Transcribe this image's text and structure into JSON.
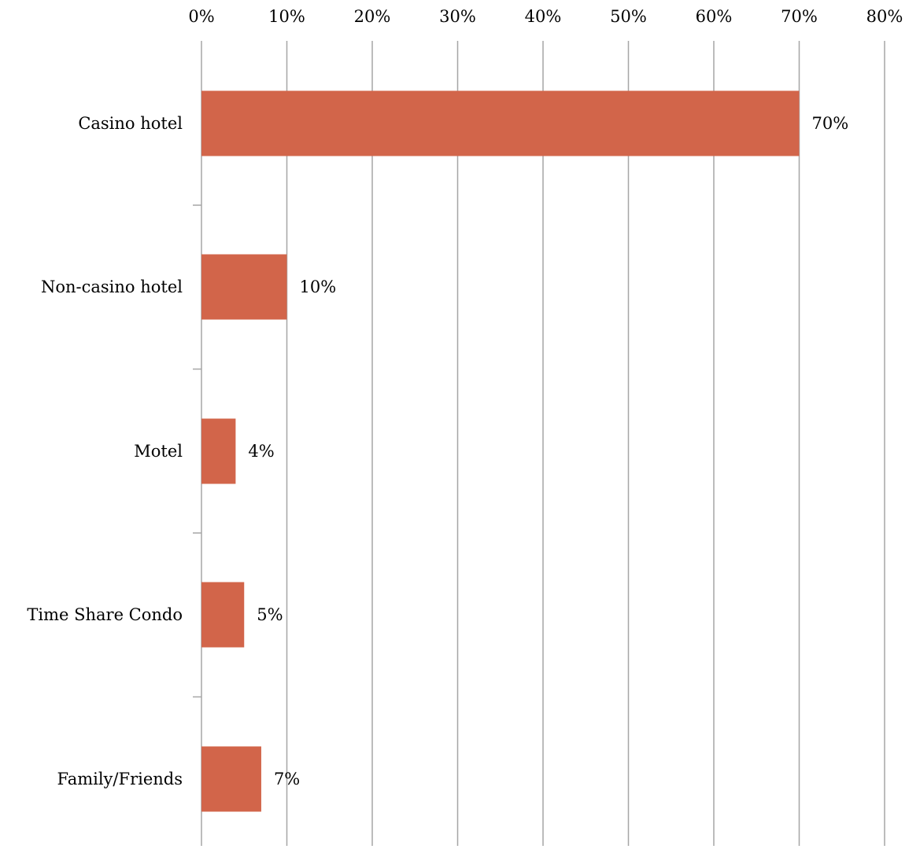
{
  "chart_data": {
    "type": "bar",
    "orientation": "horizontal",
    "categories": [
      "Casino hotel",
      "Non-casino hotel",
      "Motel",
      "Time Share Condo",
      "Family/Friends"
    ],
    "values": [
      70,
      10,
      4,
      5,
      7
    ],
    "data_labels": [
      "70%",
      "10%",
      "4%",
      "5%",
      "7%"
    ],
    "x_ticks": [
      "0%",
      "10%",
      "20%",
      "30%",
      "40%",
      "50%",
      "60%",
      "70%",
      "80%"
    ],
    "xlim": [
      0,
      80
    ],
    "x_axis_position": "top",
    "grid": true,
    "legend": "none",
    "title": "",
    "xlabel": "",
    "ylabel": "",
    "bar_color": "#d2654a",
    "grid_color": "#a6a6a6"
  }
}
